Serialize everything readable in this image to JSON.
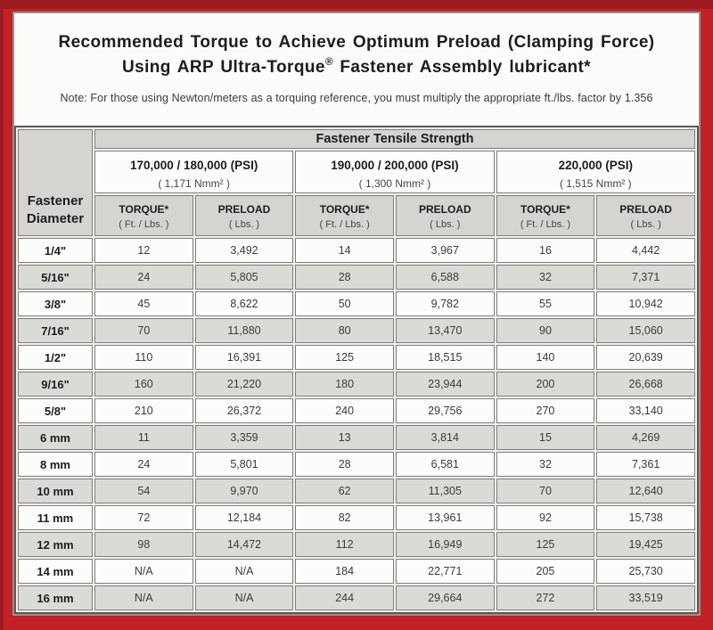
{
  "page": {
    "title_line1": "Recommended Torque to Achieve Optimum Preload (Clamping Force)",
    "title_line2_pre": "Using ARP Ultra-Torque",
    "title_line2_sup": "®",
    "title_line2_post": " Fastener Assembly lubricant*",
    "note": "Note: For those using Newton/meters as a torquing reference, you must multiply the appropriate ft./lbs. factor by 1.356"
  },
  "table": {
    "tensile_header": "Fastener Tensile Strength",
    "diameter_header": "Fastener Diameter",
    "groups": [
      {
        "psi": "170,000 / 180,000 (PSI)",
        "nmm": "( 1,171 Nmm² )",
        "torque_label": "TORQUE*",
        "torque_unit": "( Ft. / Lbs. )",
        "preload_label": "PRELOAD",
        "preload_unit": "( Lbs. )"
      },
      {
        "psi": "190,000 / 200,000 (PSI)",
        "nmm": "( 1,300 Nmm² )",
        "torque_label": "TORQUE*",
        "torque_unit": "( Ft. / Lbs. )",
        "preload_label": "PRELOAD",
        "preload_unit": "( Lbs. )"
      },
      {
        "psi": "220,000 (PSI)",
        "nmm": "( 1,515 Nmm² )",
        "torque_label": "TORQUE*",
        "torque_unit": "( Ft. / Lbs. )",
        "preload_label": "PRELOAD",
        "preload_unit": "( Lbs. )"
      }
    ]
  },
  "chart_data": {
    "type": "table",
    "title": "Recommended Torque to Achieve Optimum Preload (Clamping Force) Using ARP Ultra-Torque® Fastener Assembly lubricant*",
    "note": "Note: For those using Newton/meters as a torquing reference, you must multiply the appropriate ft./lbs. factor by 1.356",
    "columns": [
      "Fastener Diameter",
      "170,000 / 180,000 (PSI) TORQUE* ( Ft. / Lbs. )",
      "170,000 / 180,000 (PSI) PRELOAD ( Lbs. )",
      "190,000 / 200,000 (PSI) TORQUE* ( Ft. / Lbs. )",
      "190,000 / 200,000 (PSI) PRELOAD ( Lbs. )",
      "220,000 (PSI) TORQUE* ( Ft. / Lbs. )",
      "220,000 (PSI) PRELOAD ( Lbs. )"
    ],
    "rows": [
      [
        "1/4\"",
        "12",
        "3,492",
        "14",
        "3,967",
        "16",
        "4,442"
      ],
      [
        "5/16\"",
        "24",
        "5,805",
        "28",
        "6,588",
        "32",
        "7,371"
      ],
      [
        "3/8\"",
        "45",
        "8,622",
        "50",
        "9,782",
        "55",
        "10,942"
      ],
      [
        "7/16\"",
        "70",
        "11,880",
        "80",
        "13,470",
        "90",
        "15,060"
      ],
      [
        "1/2\"",
        "110",
        "16,391",
        "125",
        "18,515",
        "140",
        "20,639"
      ],
      [
        "9/16\"",
        "160",
        "21,220",
        "180",
        "23,944",
        "200",
        "26,668"
      ],
      [
        "5/8\"",
        "210",
        "26,372",
        "240",
        "29,756",
        "270",
        "33,140"
      ],
      [
        "6 mm",
        "11",
        "3,359",
        "13",
        "3,814",
        "15",
        "4,269"
      ],
      [
        "8 mm",
        "24",
        "5,801",
        "28",
        "6,581",
        "32",
        "7,361"
      ],
      [
        "10 mm",
        "54",
        "9,970",
        "62",
        "11,305",
        "70",
        "12,640"
      ],
      [
        "11 mm",
        "72",
        "12,184",
        "82",
        "13,961",
        "92",
        "15,738"
      ],
      [
        "12 mm",
        "98",
        "14,472",
        "112",
        "16,949",
        "125",
        "19,425"
      ],
      [
        "14 mm",
        "N/A",
        "N/A",
        "184",
        "22,771",
        "205",
        "25,730"
      ],
      [
        "16 mm",
        "N/A",
        "N/A",
        "244",
        "29,664",
        "272",
        "33,519"
      ]
    ]
  },
  "colors": {
    "frame_red": "#c32127",
    "frame_dark_red": "#9e1b21",
    "header_gray": "#d5d4d1",
    "row_shade_gray": "#dadad6"
  }
}
